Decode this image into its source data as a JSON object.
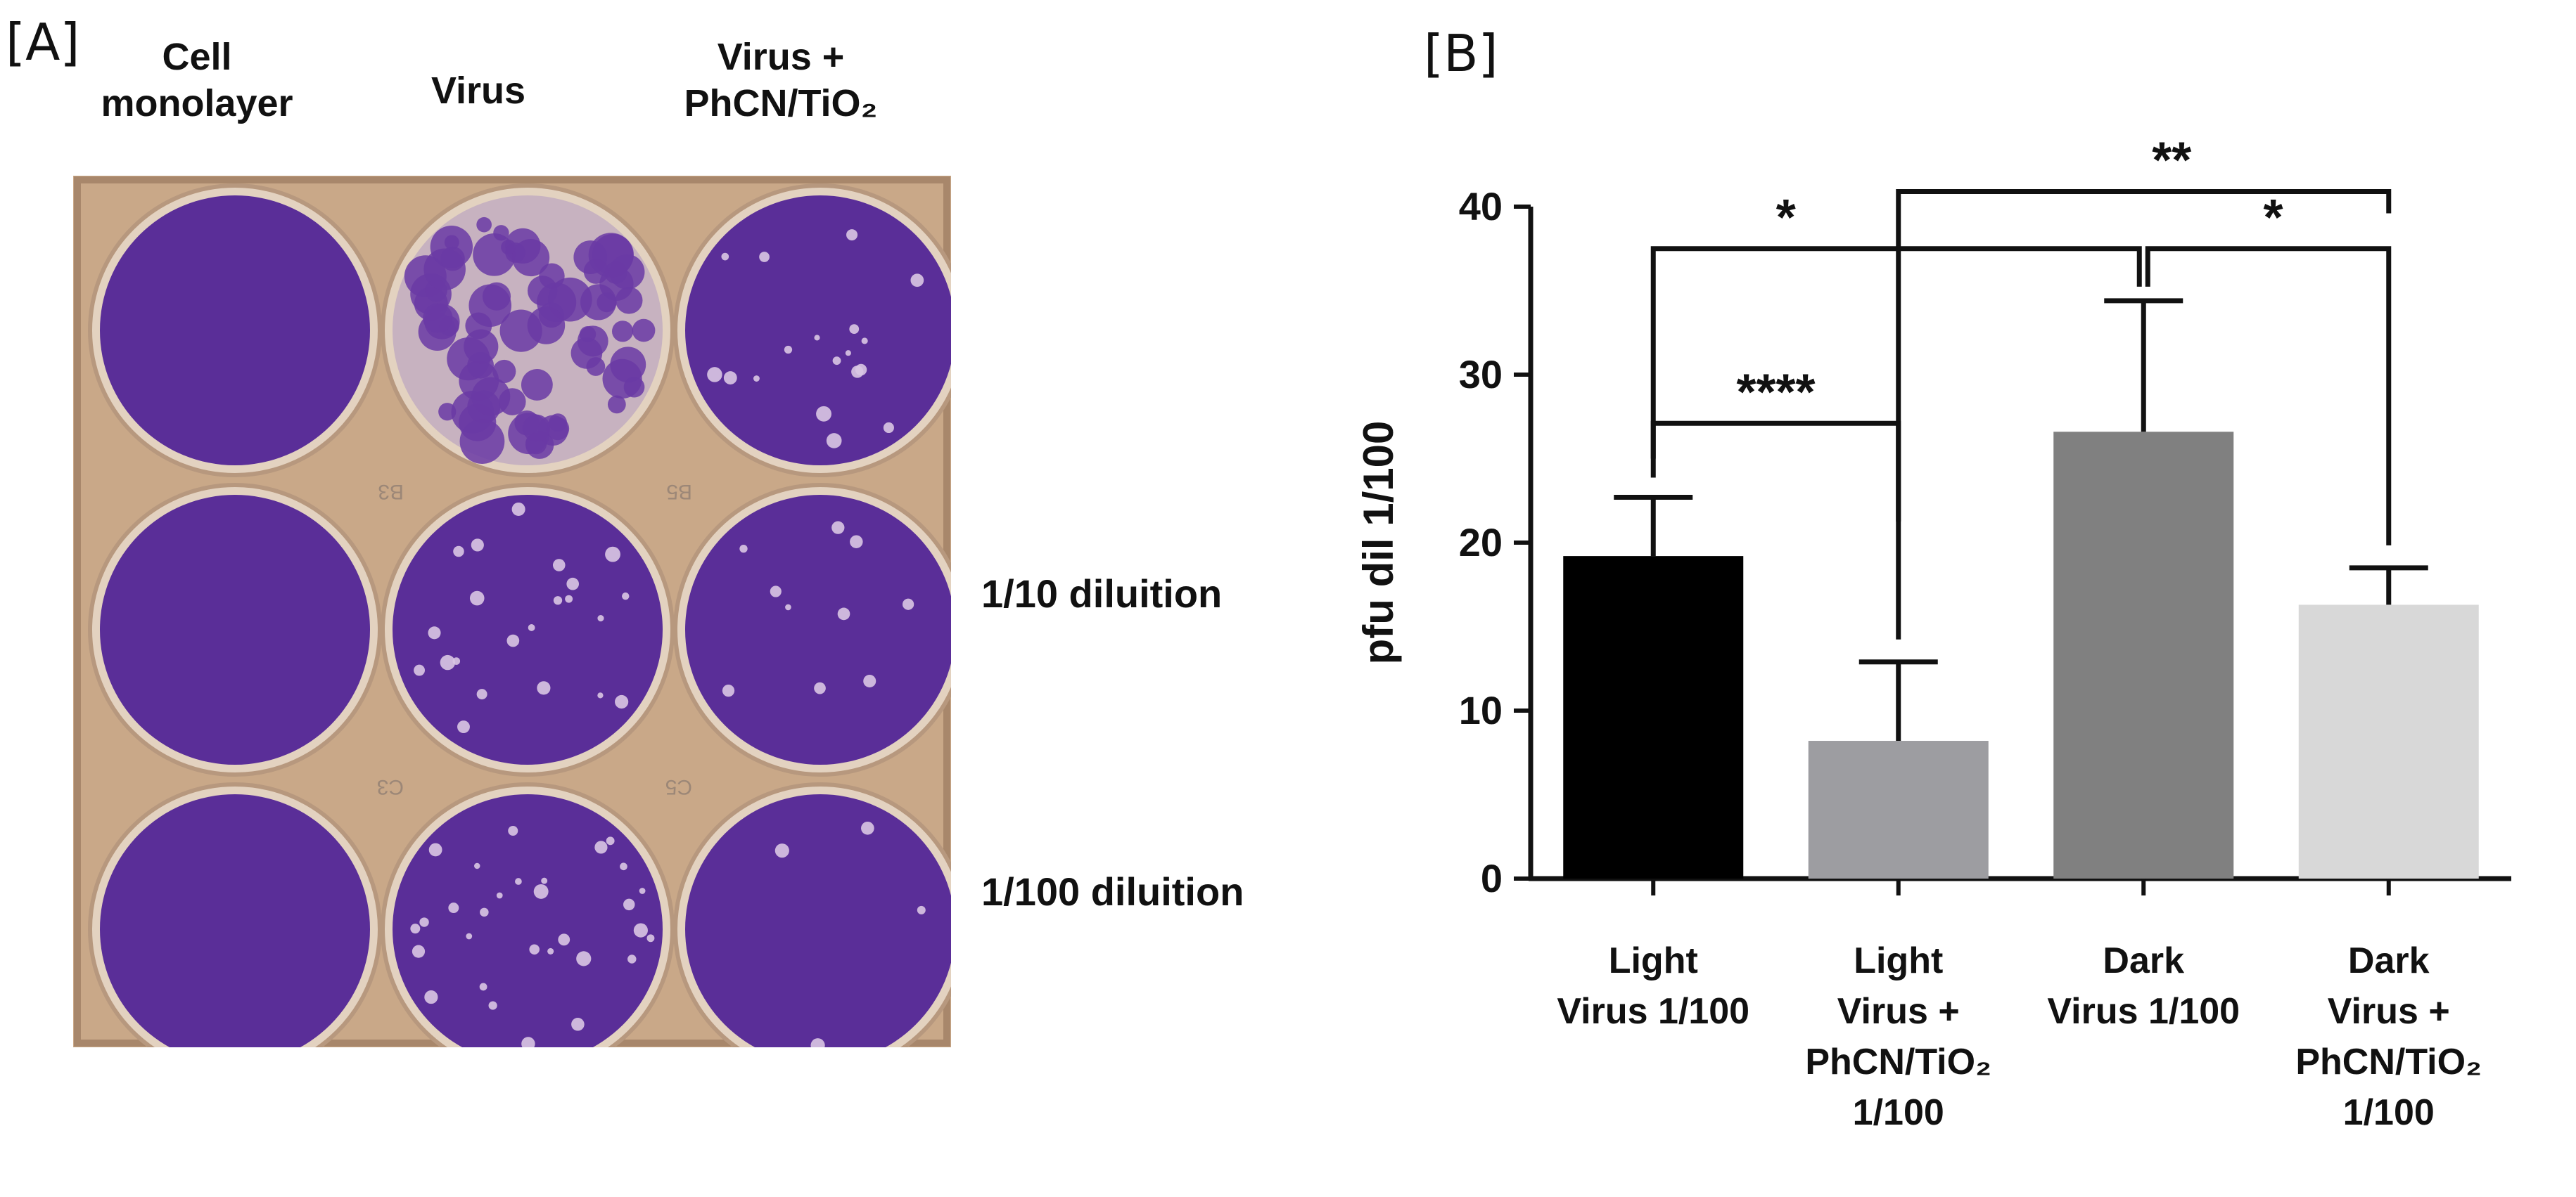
{
  "panel_a": {
    "label": "[A]",
    "columns": [
      "Cell monolayer",
      "Virus",
      "Virus + PhCN/TiO₂"
    ],
    "column_lines": [
      [
        "Cell",
        "monolayer"
      ],
      [
        "Virus"
      ],
      [
        "Virus +",
        "PhCN/TiO₂"
      ]
    ],
    "rows": [
      "1/10 diluition",
      "1/100 diluition"
    ],
    "well_codes": [
      "B3",
      "B5",
      "C3",
      "C5"
    ],
    "colors": {
      "stain": "#5a2e98",
      "plate_bg": "#c9a888",
      "well_rim": "#e3d2c0"
    }
  },
  "panel_b": {
    "label": "[B]"
  },
  "chart_data": {
    "type": "bar",
    "title": "",
    "xlabel": "",
    "ylabel": "pfu dil 1/100",
    "ylim": [
      0,
      40
    ],
    "yticks": [
      0,
      10,
      20,
      30,
      40
    ],
    "categories": [
      [
        "Light",
        "Virus 1/100"
      ],
      [
        "Light",
        "Virus +",
        "PhCN/TiO₂",
        "1/100"
      ],
      [
        "Dark",
        "Virus 1/100"
      ],
      [
        "Dark",
        "Virus +",
        "PhCN/TiO₂",
        "1/100"
      ]
    ],
    "values": [
      19.2,
      8.2,
      26.6,
      16.3
    ],
    "errors": [
      3.5,
      4.7,
      7.8,
      2.2
    ],
    "bar_colors": [
      "#000000",
      "#9d9da1",
      "#808080",
      "#d8d8d8"
    ],
    "significance": [
      {
        "from": 0,
        "to": 1,
        "label": "****"
      },
      {
        "from": 0,
        "to": 2,
        "label": "*"
      },
      {
        "from": 2,
        "to": 3,
        "label": "*"
      },
      {
        "from": 1,
        "to": 3,
        "label": "**"
      }
    ],
    "grid": false,
    "legend": "none"
  }
}
